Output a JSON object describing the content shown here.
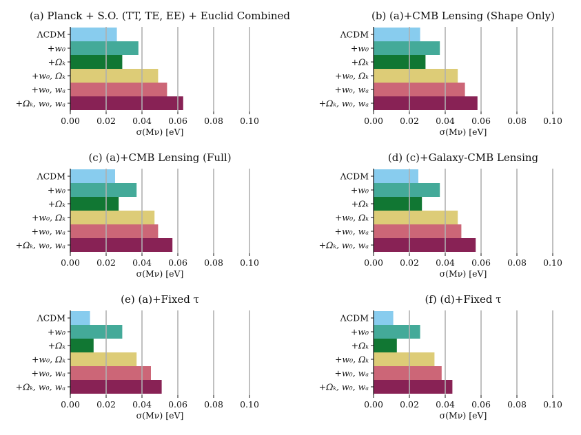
{
  "colors": {
    "lcdm": "#88ccee",
    "w0": "#44aa99",
    "omk": "#117733",
    "w0_omk": "#ddcc77",
    "w0_wa": "#cc6677",
    "omk_w0_wa": "#882255"
  },
  "chart_data": [
    {
      "type": "bar",
      "orientation": "horizontal",
      "title": "(a) Planck + S.O. (TT, TE, EE) + Euclid Combined",
      "categories": [
        "ΛCDM",
        "+w₀",
        "+Ωₖ",
        "+w₀, Ωₖ",
        "+w₀, wₐ",
        "+Ωₖ, w₀, wₐ"
      ],
      "values": [
        0.026,
        0.038,
        0.029,
        0.049,
        0.054,
        0.063
      ],
      "xlabel": "σ(Mν) [eV]",
      "xlim": [
        0,
        0.1
      ],
      "xticks": [
        "0.00",
        "0.02",
        "0.04",
        "0.06",
        "0.08",
        "0.10"
      ],
      "grid": "x"
    },
    {
      "type": "bar",
      "orientation": "horizontal",
      "title": "(b) (a)+CMB Lensing (Shape Only)",
      "categories": [
        "ΛCDM",
        "+w₀",
        "+Ωₖ",
        "+w₀, Ωₖ",
        "+w₀, wₐ",
        "+Ωₖ, w₀, wₐ"
      ],
      "values": [
        0.026,
        0.037,
        0.029,
        0.047,
        0.051,
        0.058
      ],
      "xlabel": "σ(Mν) [eV]",
      "xlim": [
        0,
        0.1
      ],
      "xticks": [
        "0.00",
        "0.02",
        "0.04",
        "0.06",
        "0.08",
        "0.10"
      ],
      "grid": "x"
    },
    {
      "type": "bar",
      "orientation": "horizontal",
      "title": "(c) (a)+CMB Lensing (Full)",
      "categories": [
        "ΛCDM",
        "+w₀",
        "+Ωₖ",
        "+w₀, Ωₖ",
        "+w₀, wₐ",
        "+Ωₖ, w₀, wₐ"
      ],
      "values": [
        0.025,
        0.037,
        0.027,
        0.047,
        0.049,
        0.057
      ],
      "xlabel": "σ(Mν) [eV]",
      "xlim": [
        0,
        0.1
      ],
      "xticks": [
        "0.00",
        "0.02",
        "0.04",
        "0.06",
        "0.08",
        "0.10"
      ],
      "grid": "x"
    },
    {
      "type": "bar",
      "orientation": "horizontal",
      "title": "(d) (c)+Galaxy-CMB Lensing",
      "categories": [
        "ΛCDM",
        "+w₀",
        "+Ωₖ",
        "+w₀, Ωₖ",
        "+w₀, wₐ",
        "+Ωₖ, w₀, wₐ"
      ],
      "values": [
        0.025,
        0.037,
        0.027,
        0.047,
        0.049,
        0.057
      ],
      "xlabel": "σ(Mν) [eV]",
      "xlim": [
        0,
        0.1
      ],
      "xticks": [
        "0.00",
        "0.02",
        "0.04",
        "0.06",
        "0.08",
        "0.10"
      ],
      "grid": "x"
    },
    {
      "type": "bar",
      "orientation": "horizontal",
      "title": "(e) (a)+Fixed τ",
      "categories": [
        "ΛCDM",
        "+w₀",
        "+Ωₖ",
        "+w₀, Ωₖ",
        "+w₀, wₐ",
        "+Ωₖ, w₀, wₐ"
      ],
      "values": [
        0.011,
        0.029,
        0.013,
        0.037,
        0.045,
        0.051
      ],
      "xlabel": "σ(Mν) [eV]",
      "xlim": [
        0,
        0.1
      ],
      "xticks": [
        "0.00",
        "0.02",
        "0.04",
        "0.06",
        "0.08",
        "0.10"
      ],
      "grid": "x"
    },
    {
      "type": "bar",
      "orientation": "horizontal",
      "title": "(f) (d)+Fixed τ",
      "categories": [
        "ΛCDM",
        "+w₀",
        "+Ωₖ",
        "+w₀, Ωₖ",
        "+w₀, wₐ",
        "+Ωₖ, w₀, wₐ"
      ],
      "values": [
        0.011,
        0.026,
        0.013,
        0.034,
        0.038,
        0.044
      ],
      "xlabel": "σ(Mν) [eV]",
      "xlim": [
        0,
        0.1
      ],
      "xticks": [
        "0.00",
        "0.02",
        "0.04",
        "0.06",
        "0.08",
        "0.10"
      ],
      "grid": "x"
    }
  ]
}
